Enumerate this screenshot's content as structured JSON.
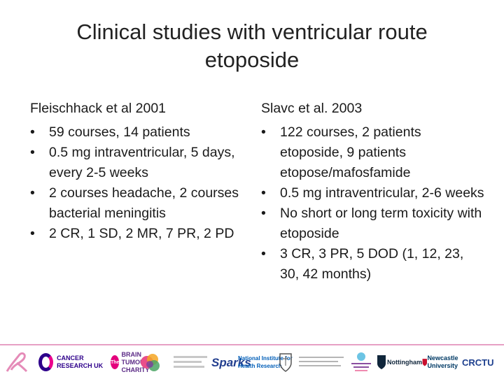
{
  "slide": {
    "title_line1": "Clinical studies with ventricular route",
    "title_line2": "etoposide"
  },
  "left": {
    "heading": "Fleischhack et al 2001",
    "bullets": [
      "59 courses, 14 patients",
      "0.5 mg intraventricular, 5 days, every 2-5 weeks",
      "2 courses headache, 2 courses bacterial meningitis",
      "2 CR, 1 SD, 2 MR, 7 PR, 2 PD"
    ]
  },
  "right": {
    "heading": "Slavc et al. 2003",
    "bullets": [
      "122 courses, 2 patients etoposide, 9 patients etopose/mafosfamide",
      "0.5 mg intraventricular, 2-6 weeks",
      "No short or long term toxicity with etoposide",
      "3 CR, 3 PR, 5 DOD (1, 12, 23, 30, 42 months)"
    ]
  },
  "logos": {
    "cruk": "CANCER RESEARCH UK",
    "brain_badge": "The",
    "brain": "BRAIN TUMOUR CHARITY",
    "sparks": "Sparks",
    "nihr": "National Institute for Health Research",
    "uon": "Nottingham",
    "ncl": "Newcastle University",
    "crctu": "CRCTU"
  },
  "colors": {
    "accent_pink": "#e7a0c4",
    "cruk_purple": "#2e008b",
    "cruk_pink": "#ec008c"
  }
}
